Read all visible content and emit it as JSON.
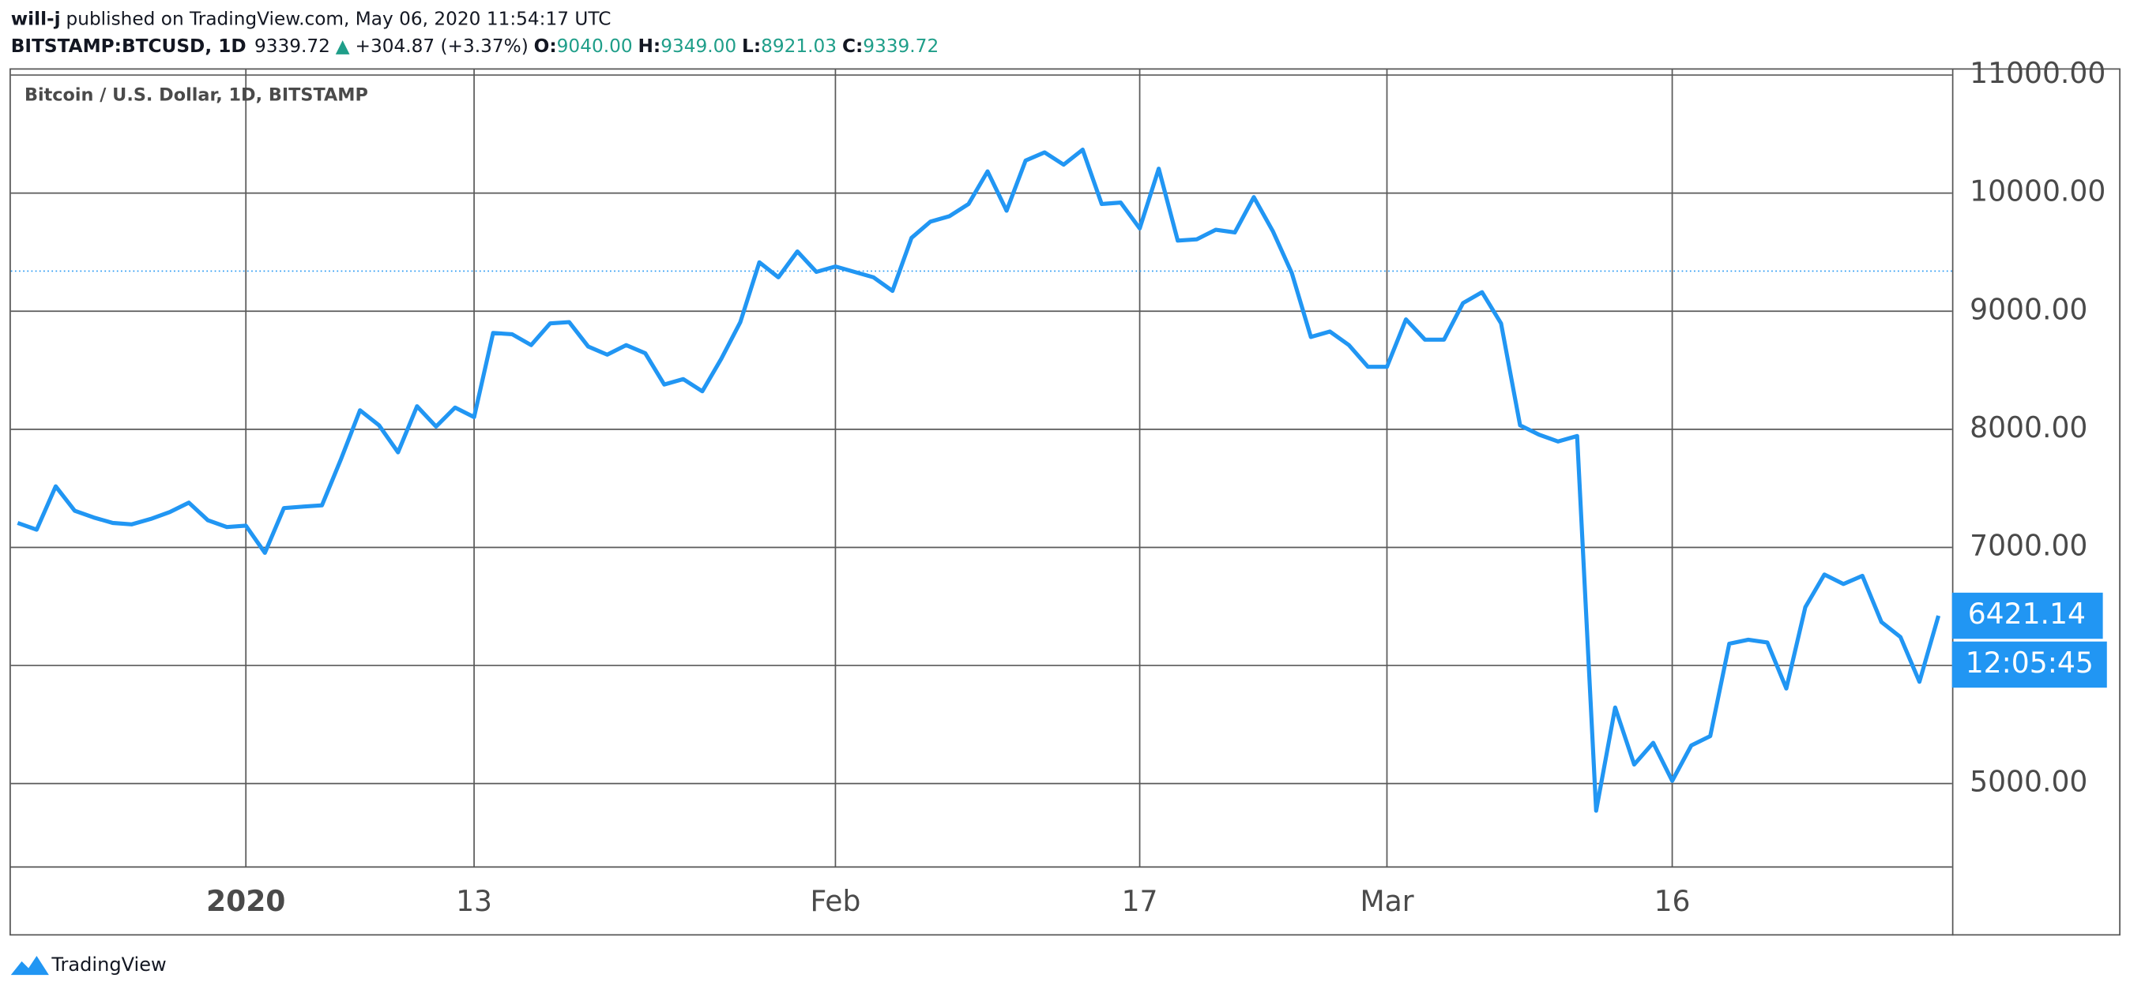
{
  "header": {
    "author": "will-j",
    "published": "published on TradingView.com, May 06, 2020 11:54:17 UTC",
    "symbol": "BITSTAMP:BTCUSD, 1D",
    "price": "9339.72",
    "arrow": "▲",
    "change": "+304.87 (+3.37%)",
    "open_label": "O:",
    "open": "9040.00",
    "high_label": "H:",
    "high": "9349.00",
    "low_label": "L:",
    "low": "8921.03",
    "close_label": "C:",
    "close": "9339.72"
  },
  "chart_data": {
    "type": "line",
    "title": "Bitcoin / U.S. Dollar, 1D, BITSTAMP",
    "color": "#2196f3",
    "grid": true,
    "categories": [
      null,
      null,
      null,
      null,
      null,
      null,
      null,
      null,
      null,
      null,
      null,
      null,
      "2020",
      null,
      null,
      null,
      null,
      null,
      null,
      null,
      null,
      null,
      null,
      null,
      "13",
      null,
      null,
      null,
      null,
      null,
      null,
      null,
      null,
      null,
      null,
      null,
      null,
      null,
      null,
      null,
      null,
      null,
      null,
      "Feb",
      null,
      null,
      null,
      null,
      null,
      null,
      null,
      null,
      null,
      null,
      null,
      null,
      null,
      null,
      null,
      "17",
      null,
      null,
      null,
      null,
      null,
      null,
      null,
      null,
      null,
      null,
      null,
      null,
      "Mar",
      null,
      null,
      null,
      null,
      null,
      null,
      null,
      null,
      null,
      null,
      null,
      null,
      null,
      null,
      "16",
      null,
      null,
      null,
      null,
      null,
      null,
      null,
      null,
      null,
      null,
      null,
      null,
      null,
      null
    ],
    "values": [
      7207,
      7150,
      7517,
      7310,
      7253,
      7207,
      7195,
      7241,
      7299,
      7379,
      7230,
      7172,
      7184,
      6954,
      7333,
      7345,
      7356,
      7747,
      8161,
      8034,
      7805,
      8195,
      8023,
      8184,
      8103,
      8816,
      8805,
      8713,
      8897,
      8908,
      8701,
      8632,
      8713,
      8644,
      8379,
      8425,
      8322,
      8598,
      8908,
      9414,
      9287,
      9506,
      9333,
      9379,
      9333,
      9287,
      9172,
      9621,
      9759,
      9805,
      9908,
      10184,
      9851,
      10276,
      10345,
      10241,
      10368,
      9908,
      9920,
      9701,
      10207,
      9598,
      9609,
      9690,
      9667,
      9966,
      9678,
      9322,
      8782,
      8828,
      8713,
      8529,
      8529,
      8931,
      8759,
      8759,
      9069,
      9161,
      8897,
      8034,
      7954,
      7897,
      7943,
      4770,
      5644,
      5161,
      5345,
      5023,
      5322,
      5402,
      6184,
      6218,
      6195,
      5805,
      6494,
      6770,
      6690,
      6759,
      6368,
      6241,
      5862,
      6421.14
    ],
    "ylim": [
      4299,
      11057
    ],
    "yticks": [
      {
        "value": 11000,
        "label": "11000.00"
      },
      {
        "value": 10000,
        "label": "10000.00"
      },
      {
        "value": 9000,
        "label": "9000.00"
      },
      {
        "value": 8000,
        "label": "8000.00"
      },
      {
        "value": 7000,
        "label": "7000.00"
      },
      {
        "value": 6000,
        "label": null
      },
      {
        "value": 5000,
        "label": "5000.00"
      }
    ],
    "price_line": 9339.72,
    "countdown": "12:05:45"
  },
  "footer": {
    "brand": "TradingView"
  }
}
